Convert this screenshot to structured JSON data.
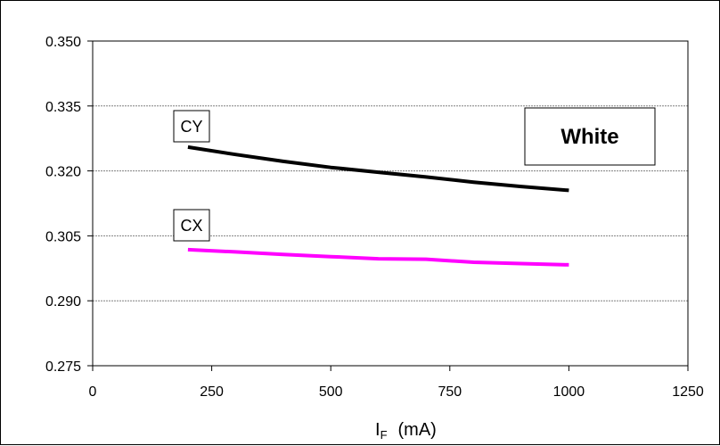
{
  "chart_data": {
    "type": "line",
    "title": "White",
    "xlabel_main": "I",
    "xlabel_sub": "F",
    "xlabel_unit": "(mA)",
    "ylabel": "",
    "xlim": [
      0,
      1250
    ],
    "ylim": [
      0.275,
      0.35
    ],
    "x_ticks": [
      0,
      250,
      500,
      750,
      1000,
      1250
    ],
    "y_ticks": [
      0.275,
      0.29,
      0.305,
      0.32,
      0.335,
      0.35
    ],
    "x_tick_labels": [
      "0",
      "250",
      "500",
      "750",
      "1000",
      "1250"
    ],
    "y_tick_labels": [
      "0.275",
      "0.290",
      "0.305",
      "0.320",
      "0.335",
      "0.350"
    ],
    "grid": true,
    "series": [
      {
        "name": "CY",
        "color": "#000000",
        "x": [
          200,
          300,
          400,
          500,
          600,
          700,
          800,
          900,
          1000
        ],
        "y": [
          0.3255,
          0.3238,
          0.3222,
          0.3208,
          0.3197,
          0.3186,
          0.3174,
          0.3164,
          0.3155
        ]
      },
      {
        "name": "CX",
        "color": "#ff00ff",
        "x": [
          200,
          300,
          400,
          500,
          600,
          700,
          800,
          900,
          1000
        ],
        "y": [
          0.3018,
          0.3013,
          0.3007,
          0.3002,
          0.2997,
          0.2996,
          0.2989,
          0.2986,
          0.2983
        ]
      }
    ]
  }
}
